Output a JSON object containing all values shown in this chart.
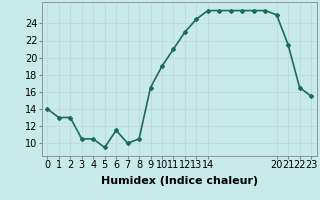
{
  "x": [
    0,
    1,
    2,
    3,
    4,
    5,
    6,
    7,
    8,
    9,
    10,
    11,
    12,
    13,
    14,
    15,
    16,
    17,
    18,
    19,
    20,
    21,
    22,
    23
  ],
  "y": [
    14,
    13,
    13,
    10.5,
    10.5,
    9.5,
    11.5,
    10,
    10.5,
    16.5,
    19,
    21,
    23,
    24.5,
    25.5,
    25.5,
    25.5,
    25.5,
    25.5,
    25.5,
    25,
    21.5,
    16.5,
    15.5
  ],
  "line_color": "#1a6b5a",
  "marker": "D",
  "marker_size": 2,
  "bg_color": "#c8eaea",
  "grid_color": "#c0d8d8",
  "xlabel": "Humidex (Indice chaleur)",
  "xlim": [
    -0.5,
    23.5
  ],
  "ylim": [
    8.5,
    26.5
  ],
  "yticks": [
    10,
    12,
    14,
    16,
    18,
    20,
    22,
    24
  ],
  "xticks": [
    0,
    1,
    2,
    3,
    4,
    5,
    6,
    7,
    8,
    9,
    10,
    11,
    12,
    13,
    14,
    20,
    21,
    22,
    23
  ],
  "xtick_labels": [
    "0",
    "1",
    "2",
    "3",
    "4",
    "5",
    "6",
    "7",
    "8",
    "9",
    "10",
    "11",
    "12",
    "13",
    "14",
    "20",
    "21",
    "22",
    "23"
  ],
  "xlabel_fontsize": 8,
  "tick_fontsize": 7,
  "line_width": 1.2
}
